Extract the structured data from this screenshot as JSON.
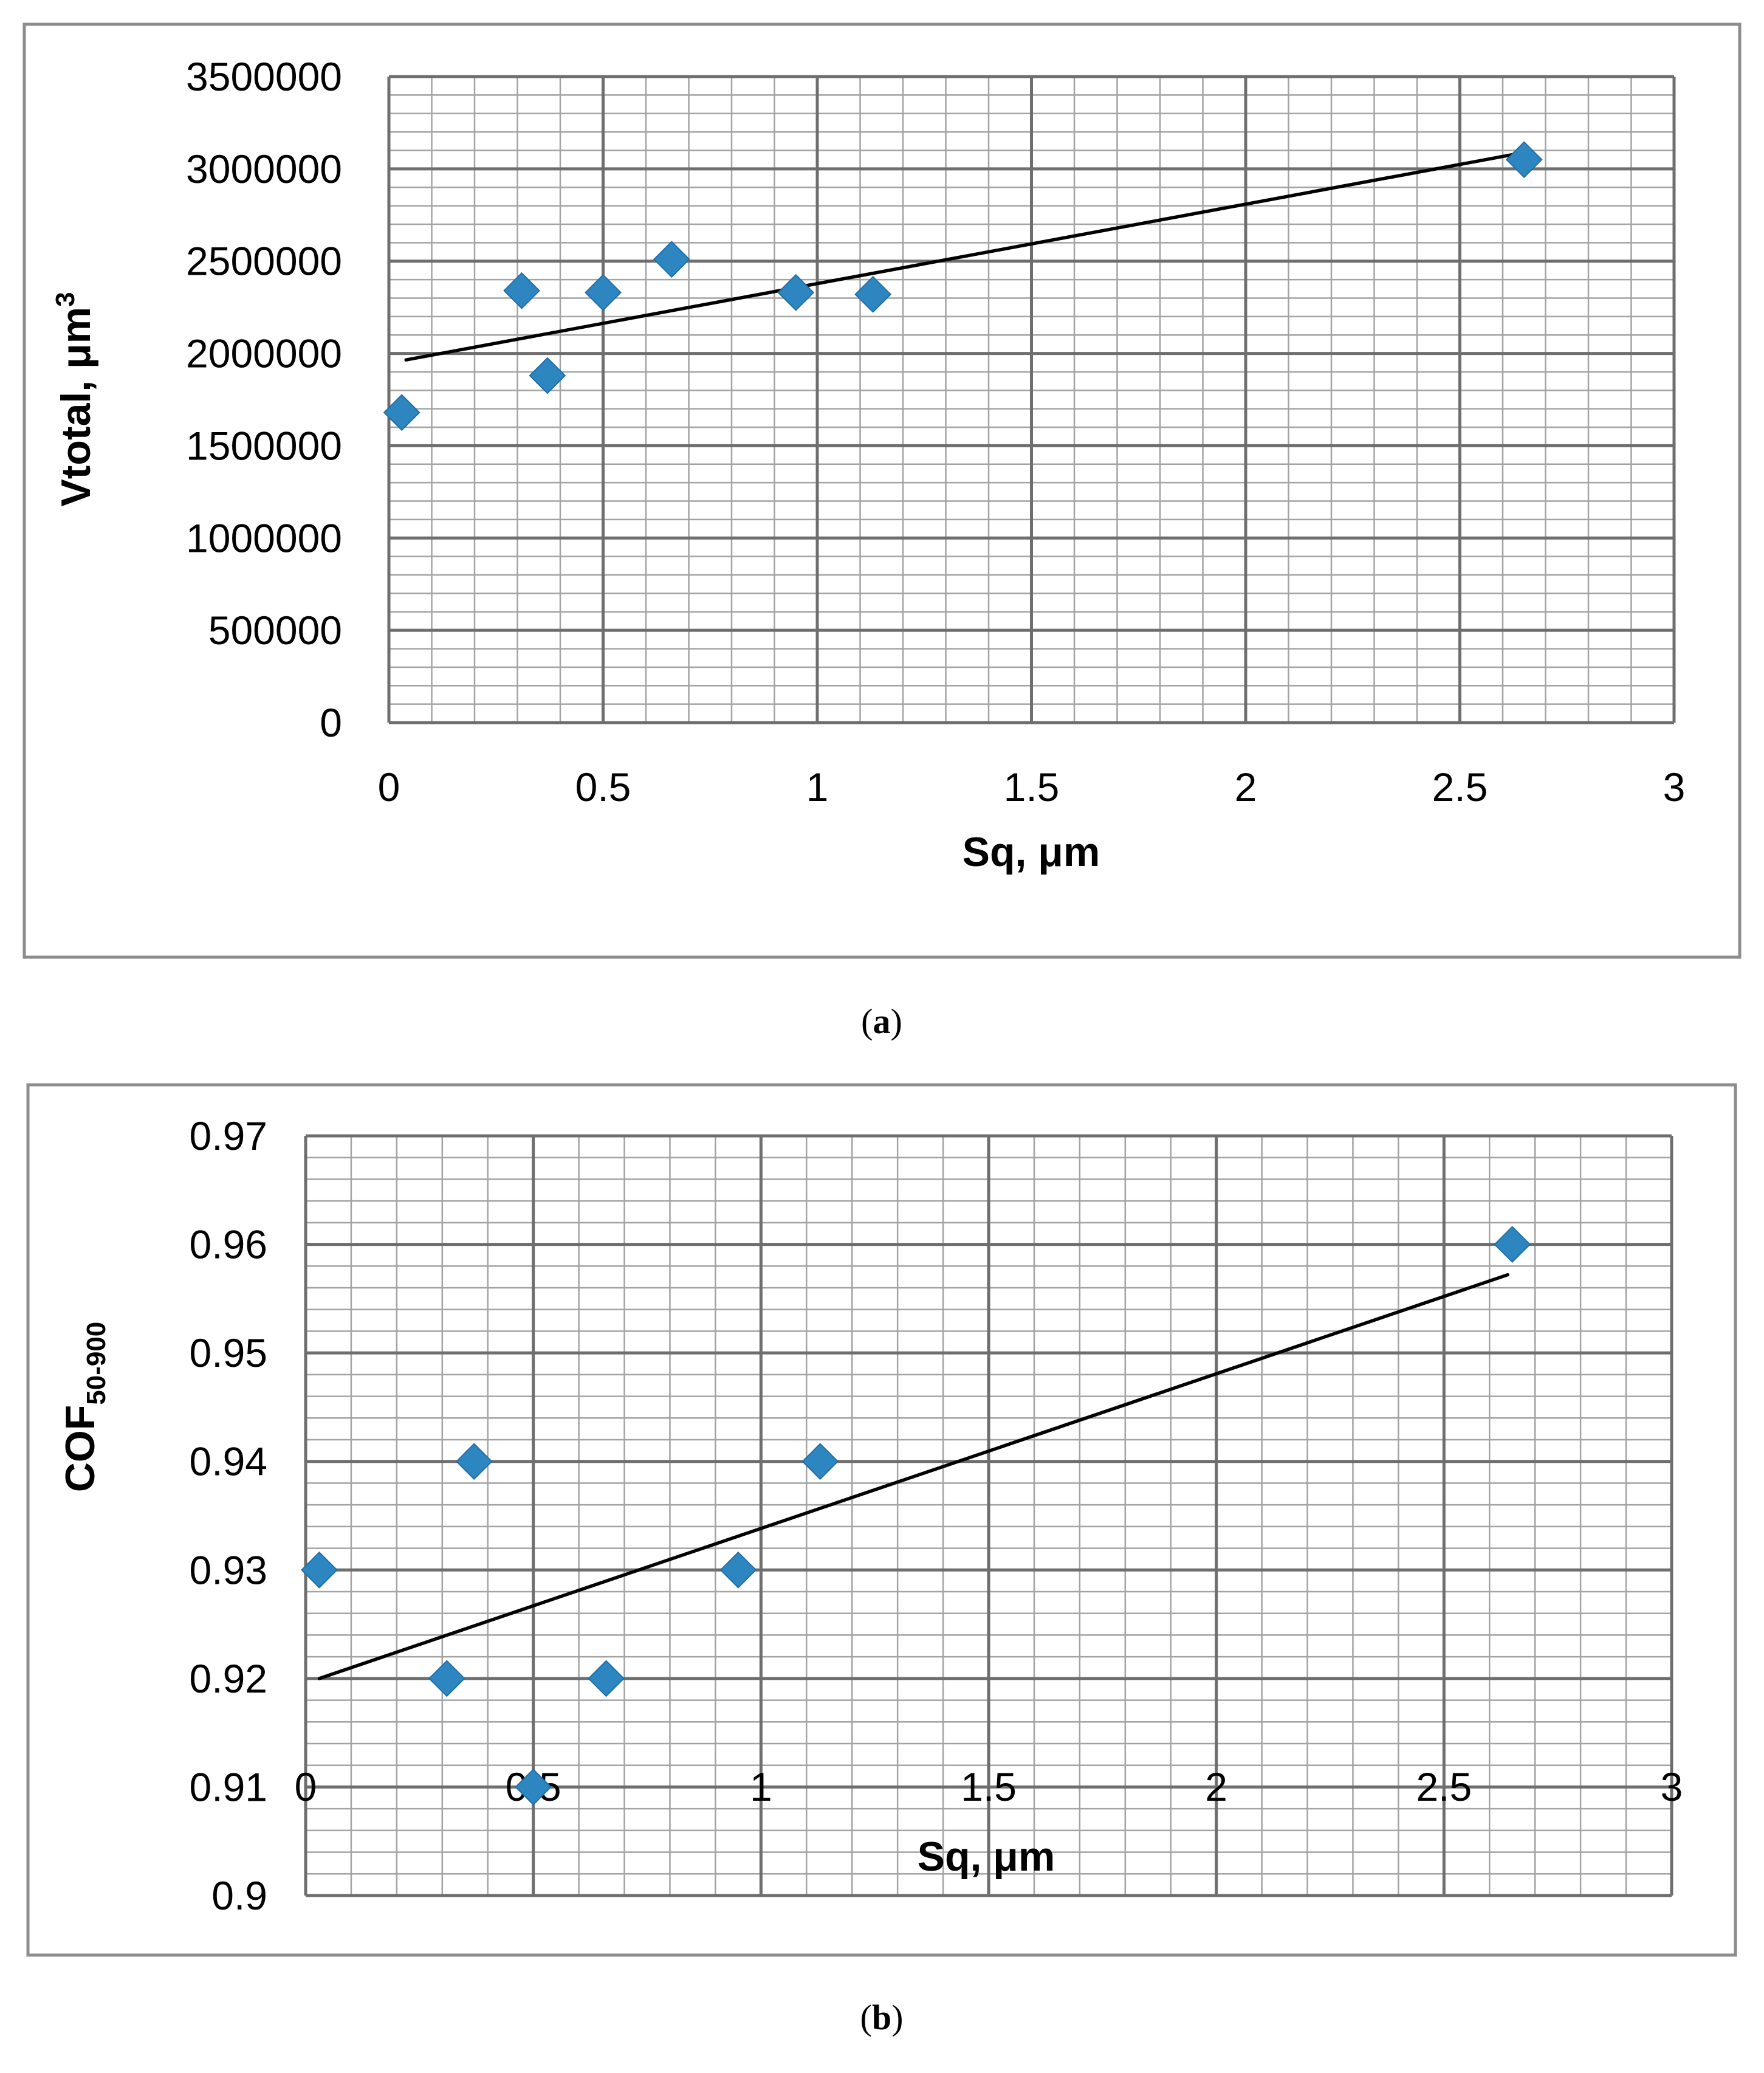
{
  "chart_data": [
    {
      "type": "scatter",
      "caption": {
        "open": "(",
        "letter": "a",
        "close": ")"
      },
      "title": "",
      "xlabel": "Sq, μm",
      "ylabel": {
        "main": "Vtotal, μm",
        "sup": "3",
        "sub": ""
      },
      "xlim": [
        0,
        3
      ],
      "ylim": [
        0,
        3500000
      ],
      "x_ticks": [
        "0",
        "0.5",
        "1",
        "1.5",
        "2",
        "2.5",
        "3"
      ],
      "y_ticks": [
        "0",
        "500000",
        "1000000",
        "1500000",
        "2000000",
        "2500000",
        "3000000",
        "3500000"
      ],
      "grid": "on (major and minor)",
      "marker_color": "#2E86C1",
      "line_color": "#000000",
      "points": [
        {
          "x": 0.03,
          "y": 1680000
        },
        {
          "x": 0.31,
          "y": 2340000
        },
        {
          "x": 0.37,
          "y": 1880000
        },
        {
          "x": 0.5,
          "y": 2330000
        },
        {
          "x": 0.66,
          "y": 2510000
        },
        {
          "x": 0.95,
          "y": 2330000
        },
        {
          "x": 1.13,
          "y": 2320000
        },
        {
          "x": 2.65,
          "y": 3050000
        }
      ],
      "trendline": {
        "x": [
          0.04,
          2.63
        ],
        "y": [
          1965000,
          3080000
        ]
      }
    },
    {
      "type": "scatter",
      "caption": {
        "open": "(",
        "letter": "b",
        "close": ")"
      },
      "title": "",
      "xlabel": "Sq, μm",
      "ylabel": {
        "main": "COF",
        "sup": "",
        "sub": "50-900"
      },
      "xlim": [
        0,
        3
      ],
      "ylim": [
        0.9,
        0.97
      ],
      "x_ticks": [
        "0",
        "0.5",
        "1",
        "1.5",
        "2",
        "2.5",
        "3"
      ],
      "y_ticks": [
        "0.9",
        "0.91",
        "0.92",
        "0.93",
        "0.94",
        "0.95",
        "0.96",
        "0.97"
      ],
      "grid": "on (major and minor)",
      "marker_color": "#2E86C1",
      "line_color": "#000000",
      "points": [
        {
          "x": 0.03,
          "y": 0.93
        },
        {
          "x": 0.31,
          "y": 0.92
        },
        {
          "x": 0.37,
          "y": 0.94
        },
        {
          "x": 0.5,
          "y": 0.91
        },
        {
          "x": 0.66,
          "y": 0.92
        },
        {
          "x": 0.95,
          "y": 0.93
        },
        {
          "x": 1.13,
          "y": 0.94
        },
        {
          "x": 2.65,
          "y": 0.96
        }
      ],
      "trendline": {
        "x": [
          0.03,
          2.64
        ],
        "y": [
          0.92,
          0.9572
        ]
      }
    }
  ]
}
